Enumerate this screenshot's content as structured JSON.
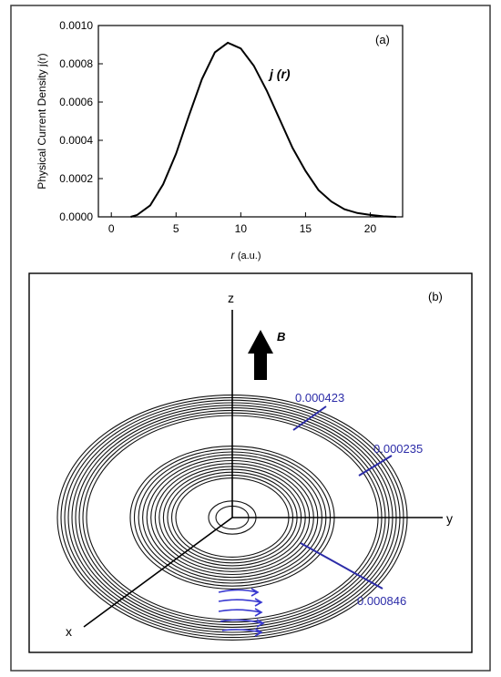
{
  "chart_data": [
    {
      "type": "line",
      "panel_label": "(a)",
      "xlabel": "r",
      "xlabel_unit": "(a.u.)",
      "ylabel": "Physical Current Density j(r)",
      "xlim": [
        -1,
        22.5
      ],
      "ylim": [
        0,
        0.001
      ],
      "xticks": [
        "0",
        "5",
        "10",
        "15",
        "20"
      ],
      "yticks": [
        "0.0000",
        "0.0002",
        "0.0004",
        "0.0006",
        "0.0008",
        "0.0010"
      ],
      "series": [
        {
          "name": "j (r)",
          "x": [
            1.5,
            2,
            3,
            4,
            5,
            6,
            7,
            8,
            9,
            10,
            11,
            12,
            13,
            14,
            15,
            16,
            17,
            18,
            19,
            20,
            21,
            22
          ],
          "y": [
            0.0,
            1e-05,
            6e-05,
            0.00017,
            0.00033,
            0.00053,
            0.00072,
            0.00086,
            0.00091,
            0.00088,
            0.00079,
            0.00066,
            0.00051,
            0.00036,
            0.00024,
            0.00014,
            8e-05,
            4e-05,
            2e-05,
            1e-05,
            3e-06,
            0.0
          ]
        }
      ],
      "grid": false
    },
    {
      "type": "diagram",
      "panel_label": "(b)",
      "axes": [
        "x",
        "y",
        "z"
      ],
      "field_label": "B",
      "contour_labels": [
        "0.000423",
        "0.000235",
        "0.000846"
      ]
    }
  ],
  "colors": {
    "curve": "#000000",
    "contour_label": "#2c2ca8",
    "flow_arrow": "#3a3ad0"
  }
}
